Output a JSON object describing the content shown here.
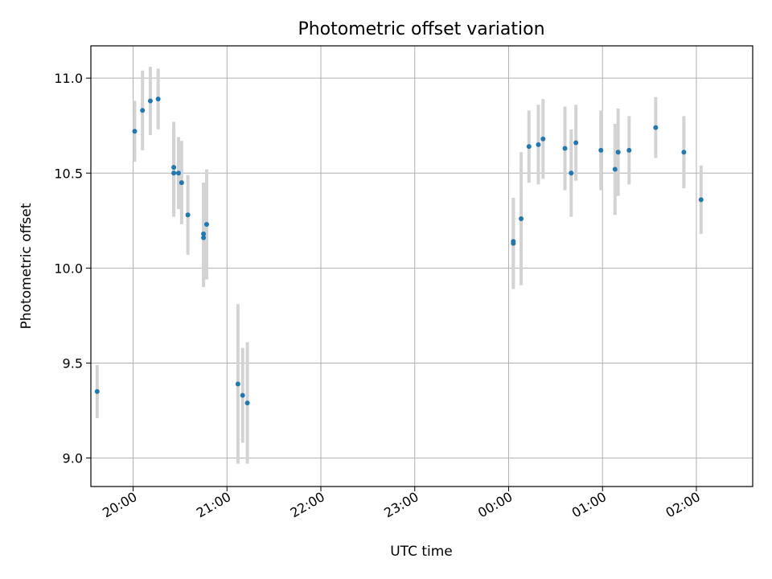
{
  "chart_data": {
    "type": "scatter",
    "title": "Photometric offset variation",
    "xlabel": "UTC time",
    "ylabel": "Photometric offset",
    "x_unit": "UTC time (HH:MM)",
    "xlim": [
      "19:33",
      "02:36"
    ],
    "ylim": [
      8.85,
      11.17
    ],
    "x_ticks": [
      "20:00",
      "21:00",
      "22:00",
      "23:00",
      "00:00",
      "01:00",
      "02:00"
    ],
    "y_ticks": [
      9.0,
      9.5,
      10.0,
      10.5,
      11.0
    ],
    "y_tick_labels": [
      "9.0",
      "9.5",
      "10.0",
      "10.5",
      "11.0"
    ],
    "grid": true,
    "colors": {
      "point": "#1f77b4",
      "errorbar": "#d3d3d3",
      "grid": "#b0b0b0"
    },
    "points": [
      {
        "x": "19:37",
        "y": 9.35,
        "err": 0.14
      },
      {
        "x": "20:01",
        "y": 10.72,
        "err": 0.16
      },
      {
        "x": "20:06",
        "y": 10.83,
        "err": 0.21
      },
      {
        "x": "20:11",
        "y": 10.88,
        "err": 0.18
      },
      {
        "x": "20:16",
        "y": 10.89,
        "err": 0.16
      },
      {
        "x": "20:26",
        "y": 10.53,
        "err": 0.24
      },
      {
        "x": "20:26",
        "y": 10.5,
        "err": 0.23
      },
      {
        "x": "20:29",
        "y": 10.5,
        "err": 0.19
      },
      {
        "x": "20:31",
        "y": 10.45,
        "err": 0.22
      },
      {
        "x": "20:35",
        "y": 10.28,
        "err": 0.21
      },
      {
        "x": "20:45",
        "y": 10.18,
        "err": 0.27
      },
      {
        "x": "20:45",
        "y": 10.16,
        "err": 0.26
      },
      {
        "x": "20:47",
        "y": 10.23,
        "err": 0.29
      },
      {
        "x": "21:07",
        "y": 9.39,
        "err": 0.42
      },
      {
        "x": "21:10",
        "y": 9.33,
        "err": 0.25
      },
      {
        "x": "21:13",
        "y": 9.29,
        "err": 0.32
      },
      {
        "x": "00:03",
        "y": 10.14,
        "err": 0.23
      },
      {
        "x": "00:03",
        "y": 10.13,
        "err": 0.24
      },
      {
        "x": "00:08",
        "y": 10.26,
        "err": 0.35
      },
      {
        "x": "00:13",
        "y": 10.64,
        "err": 0.19
      },
      {
        "x": "00:19",
        "y": 10.65,
        "err": 0.21
      },
      {
        "x": "00:22",
        "y": 10.68,
        "err": 0.21
      },
      {
        "x": "00:36",
        "y": 10.63,
        "err": 0.22
      },
      {
        "x": "00:40",
        "y": 10.5,
        "err": 0.23
      },
      {
        "x": "00:43",
        "y": 10.66,
        "err": 0.2
      },
      {
        "x": "00:59",
        "y": 10.62,
        "err": 0.21
      },
      {
        "x": "01:08",
        "y": 10.52,
        "err": 0.24
      },
      {
        "x": "01:10",
        "y": 10.61,
        "err": 0.23
      },
      {
        "x": "01:17",
        "y": 10.62,
        "err": 0.18
      },
      {
        "x": "01:34",
        "y": 10.74,
        "err": 0.16
      },
      {
        "x": "01:52",
        "y": 10.61,
        "err": 0.19
      },
      {
        "x": "02:03",
        "y": 10.36,
        "err": 0.18
      }
    ]
  }
}
